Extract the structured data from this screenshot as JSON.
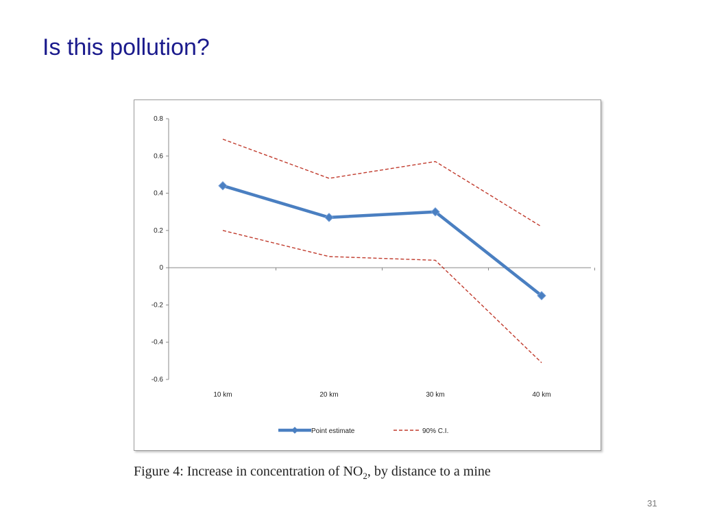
{
  "slide": {
    "title": "Is this pollution?",
    "page_number": "31"
  },
  "caption": {
    "prefix": "Figure 4:  Increase in concentration of NO",
    "subscript": "2",
    "suffix": ", by distance to a mine"
  },
  "colors": {
    "title": "#1a1a8c",
    "point_estimate": "#4a7fc1",
    "ci": "#c0392b",
    "axis": "#888888"
  },
  "chart_data": {
    "type": "line",
    "categories": [
      "10 km",
      "20 km",
      "30 km",
      "40 km"
    ],
    "ylim": [
      -0.6,
      0.8
    ],
    "yticks": [
      0.8,
      0.6,
      0.4,
      0.2,
      0,
      -0.2,
      -0.4,
      -0.6
    ],
    "ytick_labels": [
      "0.8",
      "0.6",
      "0.4",
      "0.2",
      "0",
      "-0.2",
      "-0.4",
      "-0.6"
    ],
    "legend_position": "bottom",
    "grid": false,
    "series": [
      {
        "name": "Point estimate",
        "style": "solid-with-markers",
        "values": [
          0.44,
          0.27,
          0.3,
          -0.15
        ]
      },
      {
        "name": "90% C.I.",
        "style": "dashed",
        "values": [
          0.69,
          0.48,
          0.57,
          0.22
        ]
      },
      {
        "name": "90% C.I.",
        "style": "dashed",
        "values": [
          0.2,
          0.06,
          0.04,
          -0.51
        ]
      }
    ],
    "legend": [
      "Point estimate",
      "90% C.I."
    ]
  }
}
